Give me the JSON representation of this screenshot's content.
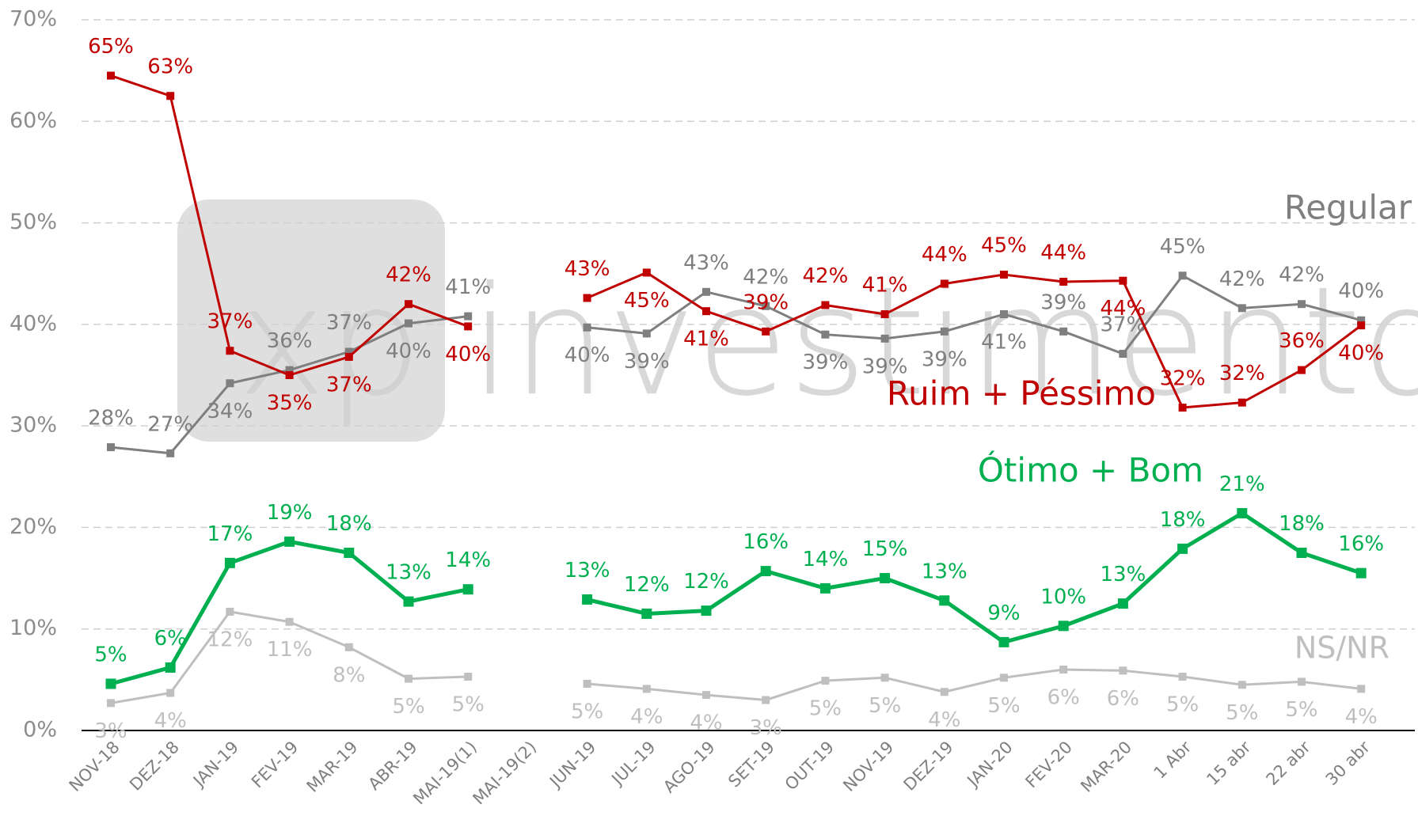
{
  "chart_data": {
    "type": "line",
    "watermark": "xp investimentos",
    "categories": [
      "NOV-18",
      "DEZ-18",
      "JAN-19",
      "FEV-19",
      "MAR-19",
      "ABR-19",
      "MAI-19(1)",
      "MAI-19(2)",
      "JUN-19",
      "JUL-19",
      "AGO-19",
      "SET-19",
      "OUT-19",
      "NOV-19",
      "DEZ-19",
      "JAN-20",
      "FEV-20",
      "MAR-20",
      "1 Abr",
      "15 abr",
      "22 abr",
      "30 abr"
    ],
    "ylim": [
      0,
      70
    ],
    "yticks": [
      {
        "value": 0,
        "label": "0%"
      },
      {
        "value": 10,
        "label": "10%"
      },
      {
        "value": 20,
        "label": "20%"
      },
      {
        "value": 30,
        "label": "30%"
      },
      {
        "value": 40,
        "label": "40%"
      },
      {
        "value": 50,
        "label": "50%"
      },
      {
        "value": 60,
        "label": "60%"
      },
      {
        "value": 70,
        "label": "70%"
      }
    ],
    "grid": true,
    "series": [
      {
        "name": "Regular",
        "color": "#7f7f7f",
        "values": [
          27.9,
          27.3,
          34.2,
          35.5,
          37.3,
          40.1,
          40.8,
          null,
          39.7,
          39.1,
          43.2,
          41.8,
          39,
          38.6,
          39.3,
          41,
          39.3,
          37.1,
          44.8,
          41.6,
          42,
          40.4
        ],
        "value_labels": [
          "28%",
          "27%",
          "34%",
          "36%",
          "37%",
          "40%",
          "41%",
          null,
          "40%",
          "39%",
          "43%",
          "42%",
          "39%",
          "39%",
          "39%",
          "41%",
          "39%",
          "37%",
          "45%",
          "42%",
          "42%",
          "40%"
        ]
      },
      {
        "name": "Ruim + Péssimo",
        "color": "#c00000",
        "values": [
          64.5,
          62.5,
          37.4,
          35,
          36.8,
          42,
          39.8,
          null,
          42.6,
          45.1,
          41.3,
          39.3,
          41.9,
          41,
          44,
          44.9,
          44.2,
          44.3,
          31.8,
          32.3,
          35.5,
          39.9
        ],
        "value_labels": [
          "65%",
          "63%",
          "37%",
          "35%",
          "37%",
          "42%",
          "40%",
          null,
          "43%",
          "45%",
          "41%",
          "39%",
          "42%",
          "41%",
          "44%",
          "45%",
          "44%",
          "44%",
          "32%",
          "32%",
          "36%",
          "40%"
        ]
      },
      {
        "name": "Ótimo + Bom",
        "color": "#00b050",
        "values": [
          4.6,
          6.2,
          16.5,
          18.6,
          17.5,
          12.7,
          13.9,
          null,
          12.9,
          11.5,
          11.8,
          15.7,
          14,
          15,
          12.8,
          8.7,
          10.3,
          12.5,
          17.9,
          21.4,
          17.5,
          15.5
        ],
        "value_labels": [
          "5%",
          "6%",
          "17%",
          "19%",
          "18%",
          "13%",
          "14%",
          null,
          "13%",
          "12%",
          "12%",
          "16%",
          "14%",
          "15%",
          "13%",
          "9%",
          "10%",
          "13%",
          "18%",
          "21%",
          "18%",
          "16%"
        ]
      },
      {
        "name": "NS/NR",
        "color": "#bfbfbf",
        "values": [
          2.7,
          3.7,
          11.7,
          10.7,
          8.2,
          5.1,
          5.3,
          null,
          4.6,
          4.1,
          3.5,
          3.0,
          4.9,
          5.2,
          3.8,
          5.2,
          6.0,
          5.9,
          5.3,
          4.5,
          4.8,
          4.1
        ],
        "value_labels": [
          "3%",
          "4%",
          "12%",
          "11%",
          "8%",
          "5%",
          "5%",
          null,
          "5%",
          "4%",
          "4%",
          "3%",
          "5%",
          "5%",
          "4%",
          "5%",
          "6%",
          "6%",
          "5%",
          "5%",
          "5%",
          "4%"
        ]
      }
    ]
  }
}
